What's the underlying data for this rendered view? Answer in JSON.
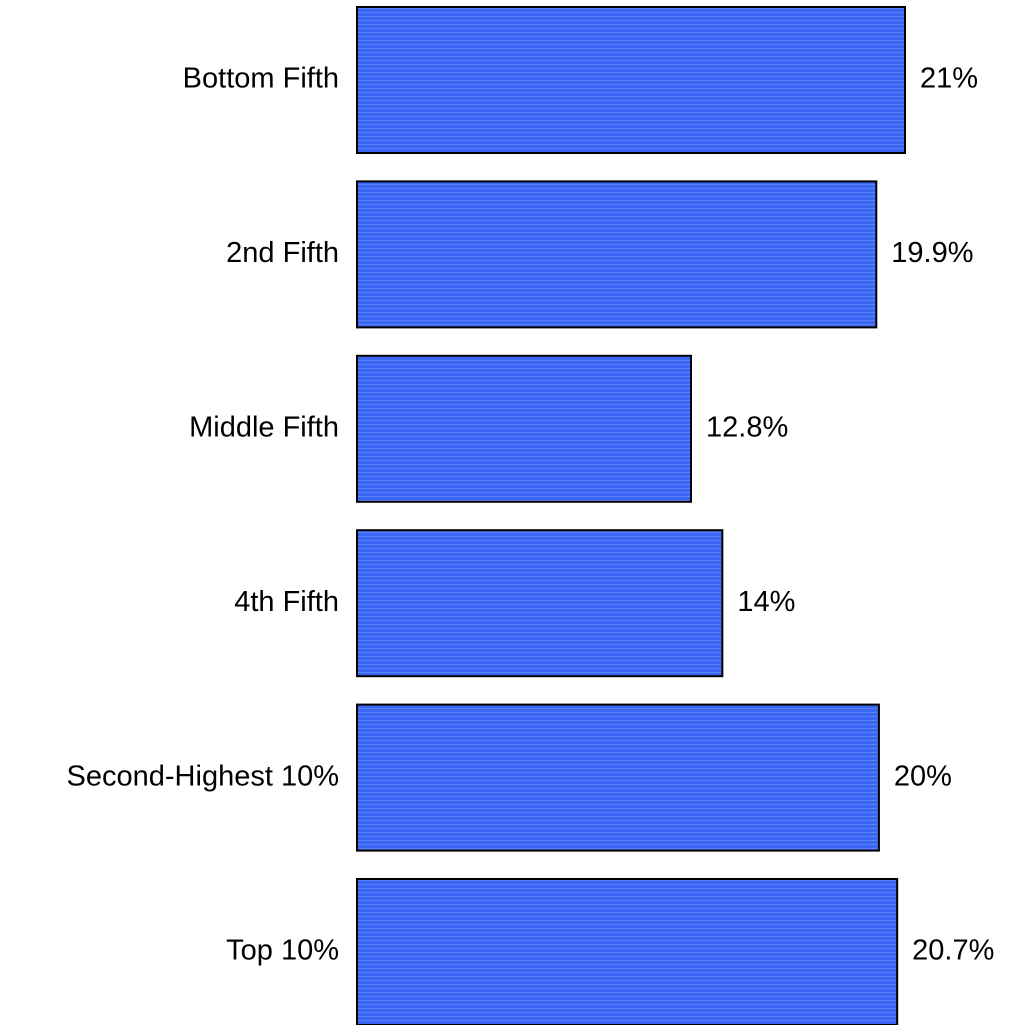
{
  "chart_data": {
    "type": "bar",
    "orientation": "horizontal",
    "categories": [
      "Bottom Fifth",
      "2nd Fifth",
      "Middle Fifth",
      "4th Fifth",
      "Second-Highest 10%",
      "Top 10%"
    ],
    "values": [
      21,
      19.9,
      12.8,
      14,
      20,
      20.7
    ],
    "value_labels": [
      "21%",
      "19.9%",
      "12.8%",
      "14%",
      "20%",
      "20.7%"
    ],
    "unit": "%",
    "xlim": [
      0,
      21
    ],
    "grid": false,
    "legend": "none",
    "colors": {
      "bar_fill": "#3a66f5",
      "bar_stripe": "#5b80f7",
      "bar_edge": "#000000",
      "text": "#000000",
      "background": "#ffffff"
    }
  }
}
